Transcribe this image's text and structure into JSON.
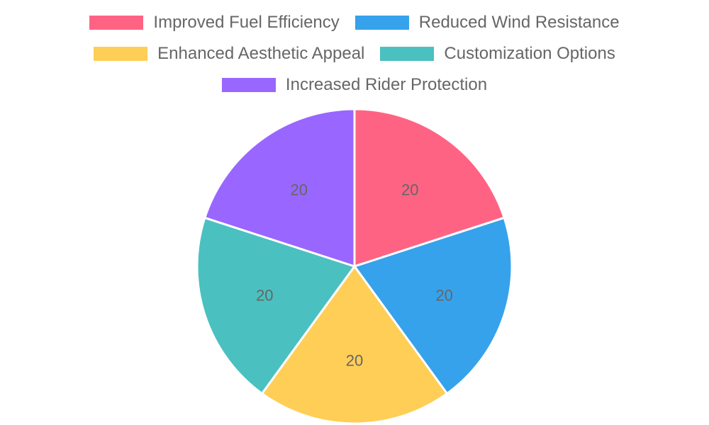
{
  "chart_data": {
    "type": "pie",
    "categories": [
      "Improved Fuel Efficiency",
      "Reduced Wind Resistance",
      "Enhanced Aesthetic Appeal",
      "Customization Options",
      "Increased Rider Protection"
    ],
    "values": [
      20,
      20,
      20,
      20,
      20
    ],
    "colors": [
      "#ff6384",
      "#36a2eb",
      "#ffce56",
      "#4bc0c0",
      "#9966ff"
    ],
    "data_labels": [
      "20",
      "20",
      "20",
      "20",
      "20"
    ],
    "legend_placement": "top"
  }
}
